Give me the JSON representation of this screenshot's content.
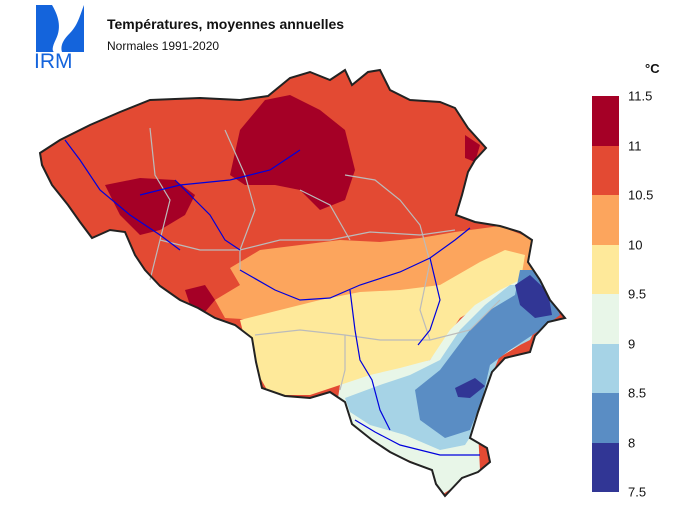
{
  "header": {
    "logo_text": "IRM",
    "title": "Températures, moyennes annuelles",
    "subtitle": "Normales 1991-2020"
  },
  "legend": {
    "unit": "°C",
    "ticks": [
      "11.5",
      "11",
      "10.5",
      "10",
      "9.5",
      "9",
      "8.5",
      "8",
      "7.5"
    ],
    "bins": [
      {
        "range": "11 – 11.5",
        "color": "#a50026"
      },
      {
        "range": "10.5 – 11",
        "color": "#e34a33"
      },
      {
        "range": "10 – 10.5",
        "color": "#fca55d"
      },
      {
        "range": "9.5 – 10",
        "color": "#fee99a"
      },
      {
        "range": "9 – 9.5",
        "color": "#e8f6e8"
      },
      {
        "range": "8.5 – 9",
        "color": "#a6d3e6"
      },
      {
        "range": "8 – 8.5",
        "color": "#5a8dc4"
      },
      {
        "range": "7.5 – 8",
        "color": "#313695"
      }
    ]
  },
  "map": {
    "country": "Belgium",
    "colors": {
      "border": "#222222",
      "provinces": "#bbbbbb",
      "rivers": "#0000dd"
    }
  }
}
